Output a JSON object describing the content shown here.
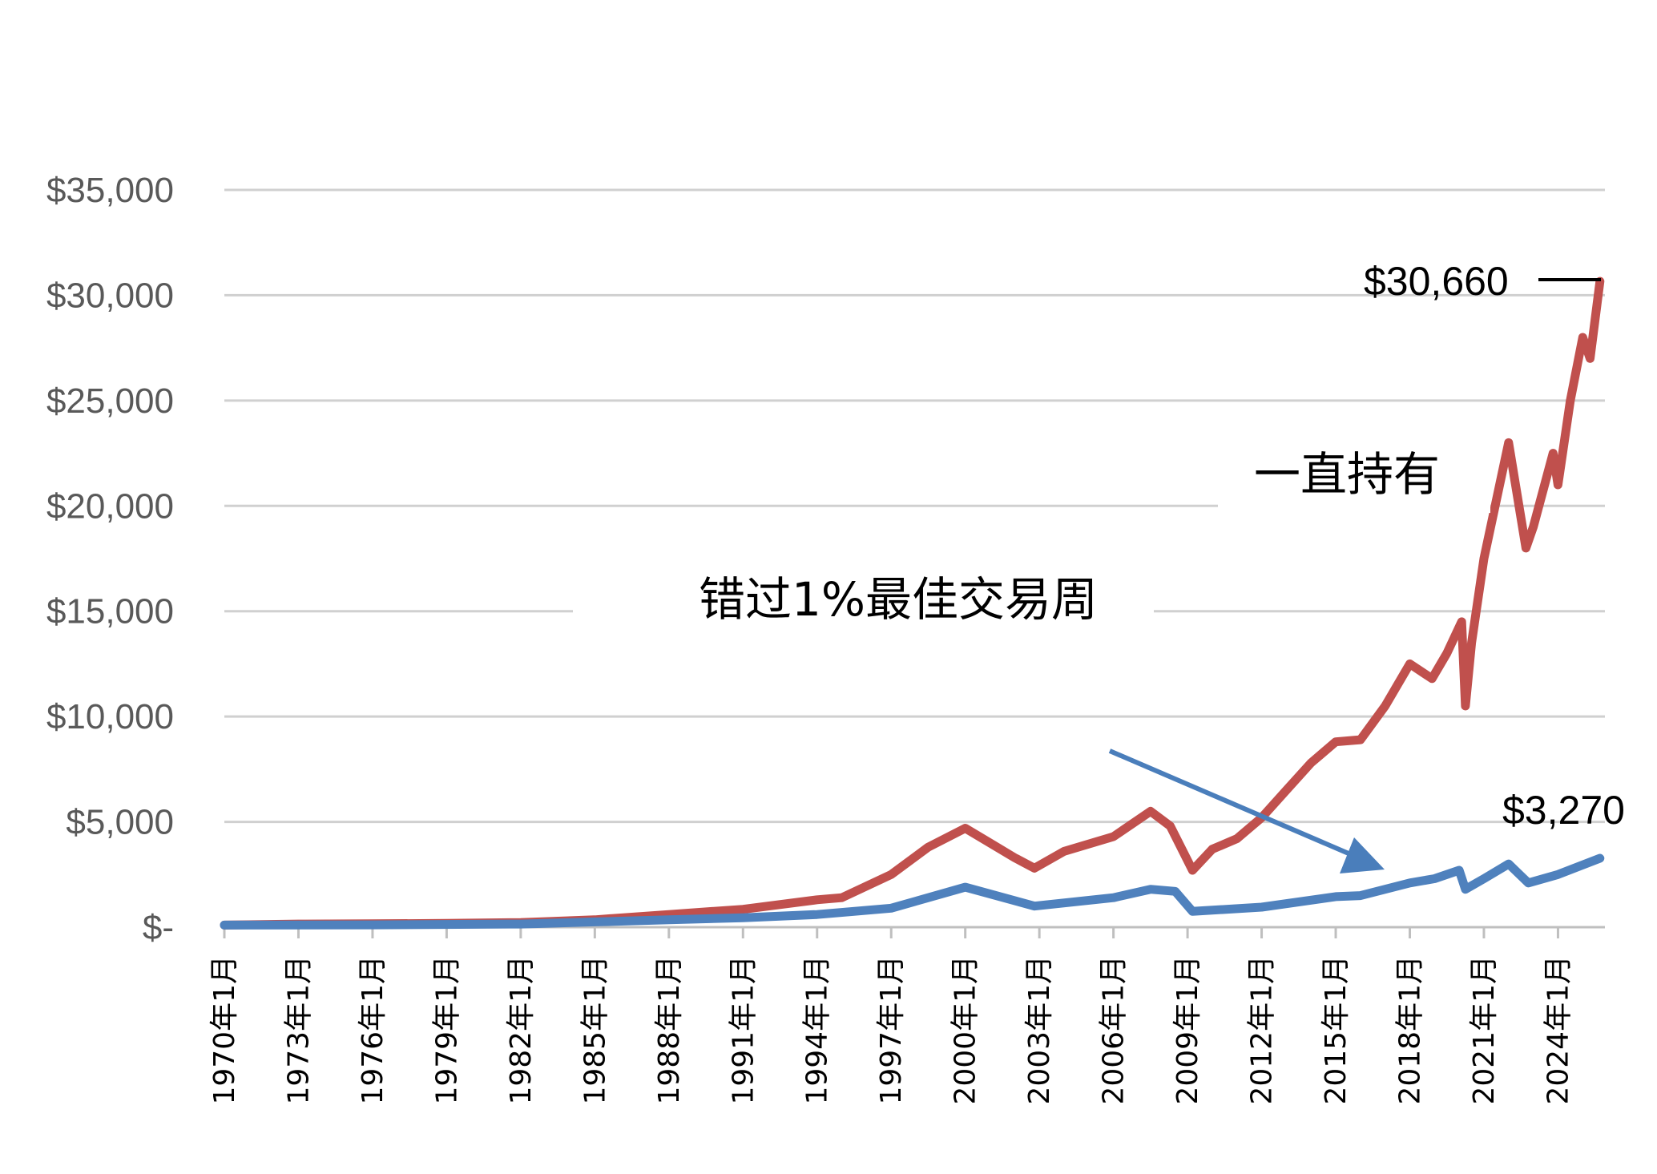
{
  "chart_data": {
    "type": "line",
    "title": "",
    "xlabel": "",
    "ylabel": "",
    "x_range": [
      1970.0,
      2025.9
    ],
    "ylim": [
      0,
      35000
    ],
    "y_ticks": [
      0,
      5000,
      10000,
      15000,
      20000,
      25000,
      30000,
      35000
    ],
    "y_tick_labels": [
      "$-",
      "$5,000",
      "$10,000",
      "$15,000",
      "$20,000",
      "$25,000",
      "$30,000",
      "$35,000"
    ],
    "x_ticks": [
      1970,
      1973,
      1976,
      1979,
      1982,
      1985,
      1988,
      1991,
      1994,
      1997,
      2000,
      2003,
      2006,
      2009,
      2012,
      2015,
      2018,
      2021,
      2024
    ],
    "x_tick_labels": [
      "1970年1月",
      "1973年1月",
      "1976年1月",
      "1979年1月",
      "1982年1月",
      "1985年1月",
      "1988年1月",
      "1991年1月",
      "1994年1月",
      "1997年1月",
      "2000年1月",
      "2003年1月",
      "2006年1月",
      "2009年1月",
      "2012年1月",
      "2015年1月",
      "2018年1月",
      "2021年1月",
      "2024年1月"
    ],
    "grid": true,
    "legend": "none",
    "series": [
      {
        "color": "#c0504d",
        "points": [
          [
            1970.0,
            100
          ],
          [
            1973.0,
            150
          ],
          [
            1976.0,
            160
          ],
          [
            1979.0,
            180
          ],
          [
            1982.0,
            220
          ],
          [
            1985.0,
            350
          ],
          [
            1988.0,
            600
          ],
          [
            1991.0,
            850
          ],
          [
            1994.0,
            1300
          ],
          [
            1995.0,
            1400
          ],
          [
            1997.0,
            2500
          ],
          [
            1998.5,
            3800
          ],
          [
            2000.0,
            4700
          ],
          [
            2001.0,
            4000
          ],
          [
            2002.0,
            3300
          ],
          [
            2002.8,
            2800
          ],
          [
            2004.0,
            3600
          ],
          [
            2006.0,
            4300
          ],
          [
            2007.5,
            5500
          ],
          [
            2008.3,
            4800
          ],
          [
            2009.2,
            2700
          ],
          [
            2010.0,
            3700
          ],
          [
            2011.0,
            4200
          ],
          [
            2012.0,
            5200
          ],
          [
            2013.0,
            6500
          ],
          [
            2014.0,
            7800
          ],
          [
            2015.0,
            8800
          ],
          [
            2016.0,
            8900
          ],
          [
            2017.0,
            10500
          ],
          [
            2018.0,
            12500
          ],
          [
            2018.9,
            11800
          ],
          [
            2019.5,
            13000
          ],
          [
            2020.1,
            14500
          ],
          [
            2020.25,
            10500
          ],
          [
            2020.5,
            13500
          ],
          [
            2021.0,
            17500
          ],
          [
            2022.0,
            23000
          ],
          [
            2022.7,
            18000
          ],
          [
            2023.0,
            19000
          ],
          [
            2023.8,
            22500
          ],
          [
            2024.0,
            21000
          ],
          [
            2024.5,
            25000
          ],
          [
            2025.0,
            28000
          ],
          [
            2025.3,
            27000
          ],
          [
            2025.7,
            30660
          ]
        ]
      },
      {
        "color": "#4f81bd",
        "points": [
          [
            1970.0,
            100
          ],
          [
            1976.0,
            110
          ],
          [
            1982.0,
            150
          ],
          [
            1985.0,
            250
          ],
          [
            1988.0,
            350
          ],
          [
            1991.0,
            450
          ],
          [
            1994.0,
            600
          ],
          [
            1997.0,
            900
          ],
          [
            2000.0,
            1900
          ],
          [
            2002.8,
            1000
          ],
          [
            2006.0,
            1400
          ],
          [
            2007.5,
            1800
          ],
          [
            2008.5,
            1700
          ],
          [
            2009.2,
            750
          ],
          [
            2012.0,
            950
          ],
          [
            2015.0,
            1450
          ],
          [
            2016.0,
            1500
          ],
          [
            2018.0,
            2100
          ],
          [
            2019.0,
            2300
          ],
          [
            2020.0,
            2700
          ],
          [
            2020.25,
            1800
          ],
          [
            2021.0,
            2300
          ],
          [
            2022.0,
            3000
          ],
          [
            2022.8,
            2100
          ],
          [
            2024.0,
            2500
          ],
          [
            2025.7,
            3270
          ]
        ]
      }
    ],
    "annotations": {
      "hold_label": "一直持有",
      "miss_label": "错过1%最佳交易周",
      "hold_end_value": "$30,660",
      "miss_end_value": "$3,270"
    },
    "arrow_color": "#4a7ebb"
  }
}
